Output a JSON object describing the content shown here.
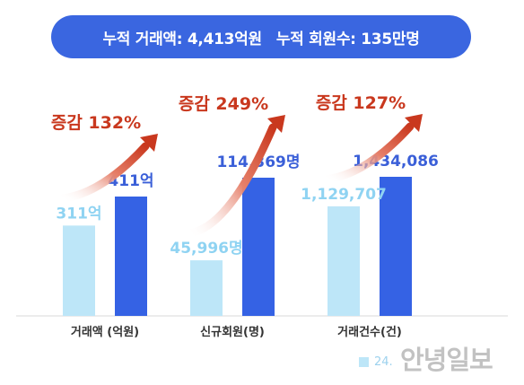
{
  "banner": {
    "part1": "누적 거래액: 4,413억원",
    "part2": "누적 회원수: 135만명"
  },
  "colors": {
    "prev": "#bde6f8",
    "curr": "#3562e4",
    "prev_label": "#8fd3f2",
    "curr_label": "#3a5fd8",
    "growth": "#c9381e",
    "banner": "#3a66e0"
  },
  "legend": {
    "prev_label": "24."
  },
  "watermark": "안녕일보",
  "chart_data": {
    "type": "bar",
    "categories": [
      {
        "name": "거래액 (억원)",
        "prev": 311,
        "curr": 411,
        "prev_label": "311억",
        "curr_label": "411억",
        "growth": "증감 132%"
      },
      {
        "name": "신규회원(명)",
        "prev": 45996,
        "curr": 114369,
        "prev_label": "45,996명",
        "curr_label": "114,369명",
        "growth": "증감 249%"
      },
      {
        "name": "거래건수(건)",
        "prev": 1129707,
        "curr": 1434086,
        "prev_label": "1,129,707",
        "curr_label": "1,434,086",
        "growth": "증감 127%"
      }
    ],
    "grid": false
  }
}
